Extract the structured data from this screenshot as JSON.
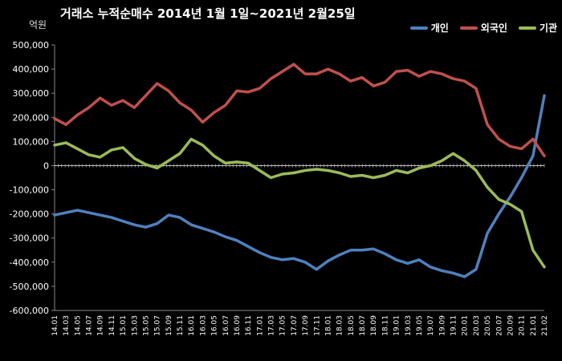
{
  "chart_data": {
    "type": "line",
    "title": "거래소 누적순매수 2014년 1월 1일~2021년 2월25일",
    "unit": "억원",
    "ylim": [
      -600000,
      500000
    ],
    "yticks": [
      500000,
      400000,
      300000,
      200000,
      100000,
      0,
      -100000,
      -200000,
      -300000,
      -400000,
      -500000,
      -600000
    ],
    "ytick_labels": [
      "500,000",
      "400,000",
      "300,000",
      "200,000",
      "100,000",
      "0",
      "-100,000",
      "-200,000",
      "-300,000",
      "-400,000",
      "-500,000",
      "-600,000"
    ],
    "x": [
      "14.01",
      "14.03",
      "14.05",
      "14.07",
      "14.09",
      "14.11",
      "15.01",
      "15.03",
      "15.05",
      "15.07",
      "15.09",
      "15.11",
      "16.01",
      "16.03",
      "16.05",
      "16.07",
      "16.09",
      "16.11",
      "17.01",
      "17.03",
      "17.05",
      "17.07",
      "17.09",
      "17.11",
      "18.01",
      "18.03",
      "18.05",
      "18.07",
      "18.09",
      "18.11",
      "19.01",
      "19.03",
      "19.05",
      "19.07",
      "19.09",
      "19.11",
      "20.01",
      "20.03",
      "20.05",
      "20.07",
      "20.09",
      "20.11",
      "21.01",
      "21.02"
    ],
    "grid": false,
    "legend_position": "top-right",
    "series": [
      {
        "name": "개인",
        "color": "#4F81BD",
        "values": [
          -205000,
          -195000,
          -185000,
          -195000,
          -205000,
          -215000,
          -230000,
          -245000,
          -255000,
          -240000,
          -205000,
          -215000,
          -245000,
          -260000,
          -275000,
          -295000,
          -310000,
          -335000,
          -360000,
          -380000,
          -390000,
          -385000,
          -400000,
          -430000,
          -395000,
          -370000,
          -350000,
          -350000,
          -345000,
          -365000,
          -390000,
          -405000,
          -390000,
          -420000,
          -435000,
          -445000,
          -460000,
          -430000,
          -280000,
          -200000,
          -130000,
          -50000,
          40000,
          290000
        ]
      },
      {
        "name": "외국인",
        "color": "#C0504D",
        "values": [
          195000,
          170000,
          210000,
          240000,
          280000,
          250000,
          270000,
          240000,
          290000,
          340000,
          310000,
          260000,
          230000,
          180000,
          220000,
          250000,
          310000,
          305000,
          320000,
          360000,
          390000,
          420000,
          380000,
          380000,
          400000,
          380000,
          350000,
          365000,
          330000,
          345000,
          390000,
          395000,
          370000,
          390000,
          380000,
          360000,
          350000,
          320000,
          170000,
          110000,
          80000,
          70000,
          110000,
          40000
        ]
      },
      {
        "name": "기관",
        "color": "#9BBB59",
        "values": [
          85000,
          95000,
          70000,
          45000,
          35000,
          65000,
          75000,
          30000,
          5000,
          -10000,
          20000,
          50000,
          110000,
          85000,
          40000,
          10000,
          15000,
          10000,
          -20000,
          -50000,
          -35000,
          -30000,
          -20000,
          -15000,
          -20000,
          -30000,
          -45000,
          -40000,
          -50000,
          -40000,
          -20000,
          -30000,
          -10000,
          0,
          20000,
          50000,
          20000,
          -20000,
          -90000,
          -140000,
          -160000,
          -190000,
          -350000,
          -420000
        ]
      }
    ]
  }
}
